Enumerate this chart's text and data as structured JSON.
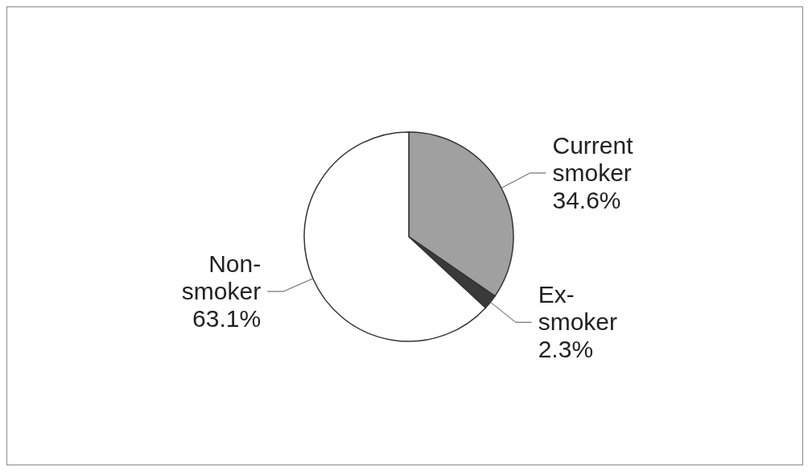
{
  "chart_data": {
    "type": "pie",
    "categories": [
      "Current smoker",
      "Ex-smoker",
      "Non-smoker"
    ],
    "values": [
      34.6,
      2.3,
      63.1
    ],
    "colors": [
      "#a0a0a0",
      "#3a3a3a",
      "#ffffff"
    ],
    "value_labels": [
      "34.6%",
      "2.3%",
      "63.1%"
    ]
  }
}
